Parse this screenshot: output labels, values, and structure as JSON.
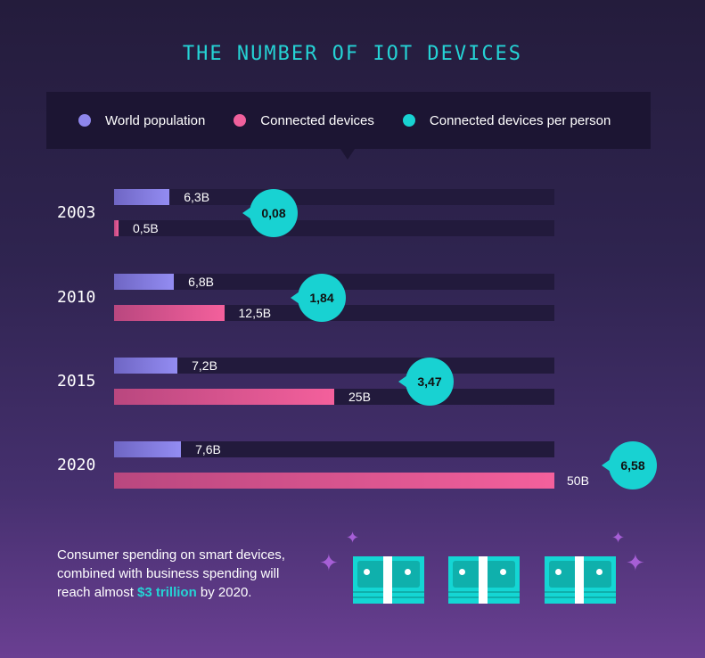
{
  "title": "THE NUMBER OF IOT DEVICES",
  "legend": [
    {
      "label": "World population",
      "color": "#8e86ec"
    },
    {
      "label": "Connected devices",
      "color": "#f0609c"
    },
    {
      "label": "Connected devices per person",
      "color": "#18d2d2"
    }
  ],
  "chart_data": {
    "type": "bar",
    "title": "THE NUMBER OF IOT DEVICES",
    "categories": [
      "2003",
      "2010",
      "2015",
      "2020"
    ],
    "xlim": [
      0,
      50
    ],
    "series": [
      {
        "name": "World population",
        "values": [
          6.3,
          6.8,
          7.2,
          7.6
        ],
        "labels": [
          "6,3B",
          "6,8B",
          "7,2B",
          "7,6B"
        ]
      },
      {
        "name": "Connected devices",
        "values": [
          0.5,
          12.5,
          25,
          50
        ],
        "labels": [
          "0,5B",
          "12,5B",
          "25B",
          "50B"
        ]
      },
      {
        "name": "Connected devices per person",
        "values": [
          0.08,
          1.84,
          3.47,
          6.58
        ],
        "labels": [
          "0,08",
          "1,84",
          "3,47",
          "6,58"
        ]
      }
    ]
  },
  "note": {
    "text1": "Consumer spending on smart devices,",
    "text2": "combined with business spending will",
    "text3a": "reach almost ",
    "highlight": "$3 trillion",
    "text3b": " by 2020."
  },
  "icons": [
    "money-stack-icon",
    "sparkle-icon"
  ]
}
